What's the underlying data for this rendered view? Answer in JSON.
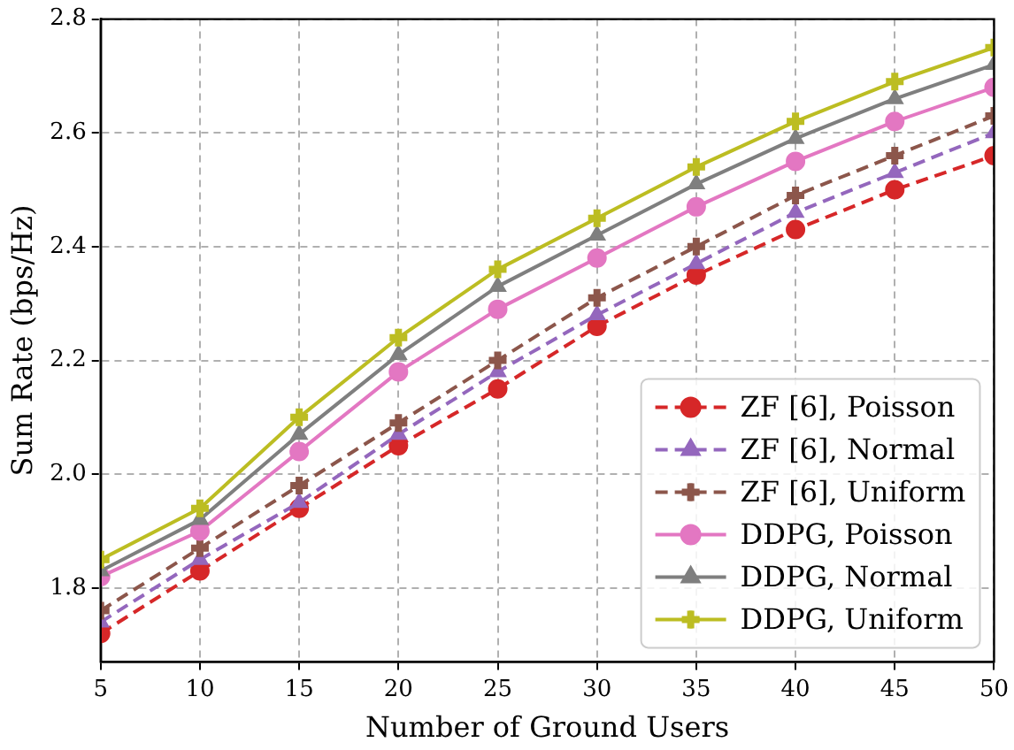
{
  "chart_data": {
    "type": "line",
    "xlabel": "Number of Ground Users",
    "ylabel": "Sum Rate (bps/Hz)",
    "x": [
      5,
      10,
      15,
      20,
      25,
      30,
      35,
      40,
      45,
      50
    ],
    "xlim": [
      5,
      50
    ],
    "xticks": [
      5,
      10,
      15,
      20,
      25,
      30,
      35,
      40,
      45,
      50
    ],
    "ylim": [
      1.67,
      2.8
    ],
    "yticks": [
      {
        "value": 1.8,
        "label": "1.8"
      },
      {
        "value": 2.0,
        "label": "2.0"
      },
      {
        "value": 2.2,
        "label": "2.2"
      },
      {
        "value": 2.4,
        "label": "2.4"
      },
      {
        "value": 2.6,
        "label": "2.6"
      },
      {
        "value": 2.8,
        "label": "2.8"
      }
    ],
    "grid": true,
    "legend": "bottom right",
    "series": [
      {
        "name": "ZF [6], Poisson",
        "color": "#d62728",
        "marker": "circle",
        "line_style": "dashed",
        "values": [
          1.72,
          1.83,
          1.94,
          2.05,
          2.15,
          2.26,
          2.35,
          2.43,
          2.5,
          2.56
        ]
      },
      {
        "name": "ZF [6], Normal",
        "color": "#9467bd",
        "marker": "triangle",
        "line_style": "dashed",
        "values": [
          1.74,
          1.85,
          1.95,
          2.07,
          2.18,
          2.28,
          2.37,
          2.46,
          2.53,
          2.6
        ]
      },
      {
        "name": "ZF [6], Uniform",
        "color": "#8c564b",
        "marker": "cross",
        "line_style": "dashed",
        "values": [
          1.76,
          1.87,
          1.98,
          2.09,
          2.2,
          2.31,
          2.4,
          2.49,
          2.56,
          2.63
        ]
      },
      {
        "name": "DDPG, Poisson",
        "color": "#e377c2",
        "marker": "circle",
        "line_style": "solid",
        "values": [
          1.82,
          1.9,
          2.04,
          2.18,
          2.29,
          2.38,
          2.47,
          2.55,
          2.62,
          2.68
        ]
      },
      {
        "name": "DDPG, Normal",
        "color": "#7f7f7f",
        "marker": "triangle",
        "line_style": "solid",
        "values": [
          1.83,
          1.92,
          2.07,
          2.21,
          2.33,
          2.42,
          2.51,
          2.59,
          2.66,
          2.72
        ]
      },
      {
        "name": "DDPG, Uniform",
        "color": "#bcbd22",
        "marker": "cross",
        "line_style": "solid",
        "values": [
          1.85,
          1.94,
          2.1,
          2.24,
          2.36,
          2.45,
          2.54,
          2.62,
          2.69,
          2.75
        ]
      }
    ]
  }
}
